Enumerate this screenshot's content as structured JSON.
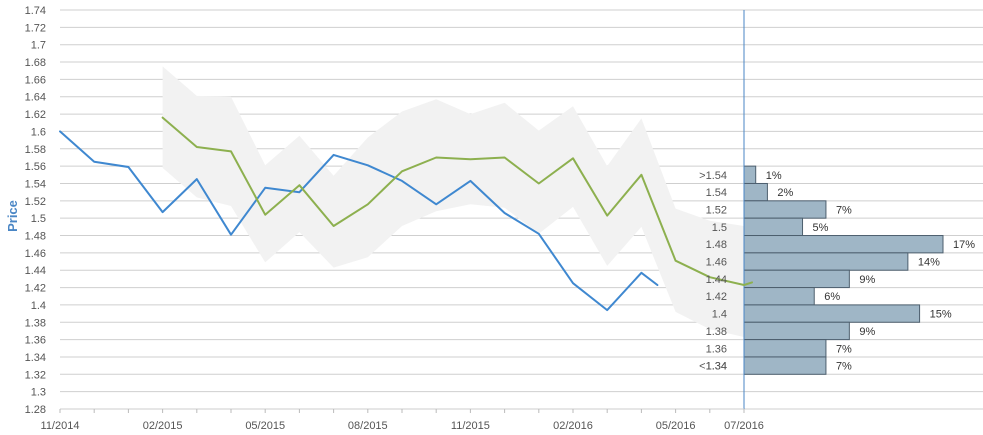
{
  "chart_data": {
    "type": "line",
    "ylabel": "Price",
    "ylim": [
      1.28,
      1.74
    ],
    "y_ticks": [
      "1.74",
      "1.72",
      "1.7",
      "1.68",
      "1.66",
      "1.64",
      "1.62",
      "1.6",
      "1.58",
      "1.56",
      "1.54",
      "1.52",
      "1.5",
      "1.48",
      "1.46",
      "1.44",
      "1.42",
      "1.4",
      "1.38",
      "1.36",
      "1.34",
      "1.32",
      "1.3",
      "1.28"
    ],
    "x_ticks": [
      "11/2014",
      "02/2015",
      "05/2015",
      "08/2015",
      "11/2015",
      "02/2016",
      "05/2016",
      "07/2016"
    ],
    "x_range": [
      "2014-11",
      "2016-07"
    ],
    "grid": true,
    "colors": {
      "actual": "#3f88d0",
      "forecast": "#8db04f",
      "band": "#f2f2f2",
      "histogram_bar": "#9fb6c6",
      "histogram_border": "#4d5f6e",
      "axis": "#4a86c5"
    },
    "series": [
      {
        "color_key": "actual",
        "points": [
          [
            "2014-11",
            1.6
          ],
          [
            "2014-12",
            1.565
          ],
          [
            "2015-01",
            1.559
          ],
          [
            "2015-02",
            1.507
          ],
          [
            "2015-03",
            1.545
          ],
          [
            "2015-04",
            1.481
          ],
          [
            "2015-05",
            1.535
          ],
          [
            "2015-06",
            1.53
          ],
          [
            "2015-07",
            1.573
          ],
          [
            "2015-08",
            1.561
          ],
          [
            "2015-09",
            1.543
          ],
          [
            "2015-10",
            1.516
          ],
          [
            "2015-11",
            1.543
          ],
          [
            "2015-12",
            1.506
          ],
          [
            "2016-01",
            1.482
          ],
          [
            "2016-02",
            1.425
          ],
          [
            "2016-03",
            1.394
          ],
          [
            "2016-04",
            1.437
          ],
          [
            "2016-04-15",
            1.423
          ]
        ]
      },
      {
        "color_key": "forecast",
        "points": [
          [
            "2015-02",
            1.616
          ],
          [
            "2015-03",
            1.582
          ],
          [
            "2015-04",
            1.577
          ],
          [
            "2015-05",
            1.504
          ],
          [
            "2015-06",
            1.538
          ],
          [
            "2015-07",
            1.491
          ],
          [
            "2015-08",
            1.516
          ],
          [
            "2015-09",
            1.554
          ],
          [
            "2015-10",
            1.57
          ],
          [
            "2015-11",
            1.568
          ],
          [
            "2015-12",
            1.57
          ],
          [
            "2016-01",
            1.54
          ],
          [
            "2016-02",
            1.569
          ],
          [
            "2016-03",
            1.503
          ],
          [
            "2016-04",
            1.55
          ],
          [
            "2016-05",
            1.451
          ],
          [
            "2016-06",
            1.432
          ],
          [
            "2016-07",
            1.423
          ],
          [
            "2016-07-08",
            1.426
          ]
        ]
      }
    ],
    "band": {
      "upper": [
        [
          "2015-02",
          1.675
        ],
        [
          "2015-03",
          1.641
        ],
        [
          "2015-04",
          1.64
        ],
        [
          "2015-05",
          1.561
        ],
        [
          "2015-06",
          1.595
        ],
        [
          "2015-07",
          1.549
        ],
        [
          "2015-08",
          1.593
        ],
        [
          "2015-09",
          1.623
        ],
        [
          "2015-10",
          1.637
        ],
        [
          "2015-11",
          1.62
        ],
        [
          "2015-12",
          1.633
        ],
        [
          "2016-01",
          1.601
        ],
        [
          "2016-02",
          1.629
        ],
        [
          "2016-03",
          1.56
        ],
        [
          "2016-04",
          1.615
        ],
        [
          "2016-05",
          1.511
        ],
        [
          "2016-06",
          1.497
        ],
        [
          "2016-07",
          1.491
        ]
      ],
      "lower": [
        [
          "2015-02",
          1.558
        ],
        [
          "2015-03",
          1.524
        ],
        [
          "2015-04",
          1.514
        ],
        [
          "2015-05",
          1.449
        ],
        [
          "2015-06",
          1.484
        ],
        [
          "2015-07",
          1.443
        ],
        [
          "2015-08",
          1.455
        ],
        [
          "2015-09",
          1.491
        ],
        [
          "2015-10",
          1.508
        ],
        [
          "2015-11",
          1.516
        ],
        [
          "2015-12",
          1.512
        ],
        [
          "2016-01",
          1.482
        ],
        [
          "2016-02",
          1.513
        ],
        [
          "2016-03",
          1.445
        ],
        [
          "2016-04",
          1.49
        ],
        [
          "2016-05",
          1.392
        ],
        [
          "2016-06",
          1.372
        ],
        [
          "2016-07",
          1.363
        ]
      ]
    },
    "histogram": [
      {
        "label": ">1.54",
        "low": 1.54,
        "high": 1.56,
        "percent": 1,
        "percent_label": "1%"
      },
      {
        "label": "1.54",
        "low": 1.52,
        "high": 1.54,
        "percent": 2,
        "percent_label": "2%"
      },
      {
        "label": "1.52",
        "low": 1.5,
        "high": 1.52,
        "percent": 7,
        "percent_label": "7%"
      },
      {
        "label": "1.5",
        "low": 1.48,
        "high": 1.5,
        "percent": 5,
        "percent_label": "5%"
      },
      {
        "label": "1.48",
        "low": 1.46,
        "high": 1.48,
        "percent": 17,
        "percent_label": "17%"
      },
      {
        "label": "1.46",
        "low": 1.44,
        "high": 1.46,
        "percent": 14,
        "percent_label": "14%"
      },
      {
        "label": "1.44",
        "low": 1.42,
        "high": 1.44,
        "percent": 9,
        "percent_label": "9%"
      },
      {
        "label": "1.42",
        "low": 1.4,
        "high": 1.42,
        "percent": 6,
        "percent_label": "6%"
      },
      {
        "label": "1.4",
        "low": 1.38,
        "high": 1.4,
        "percent": 15,
        "percent_label": "15%"
      },
      {
        "label": "1.38",
        "low": 1.36,
        "high": 1.38,
        "percent": 9,
        "percent_label": "9%"
      },
      {
        "label": "1.36",
        "low": 1.34,
        "high": 1.36,
        "percent": 7,
        "percent_label": "7%"
      },
      {
        "label": "1.34",
        "low": 1.32,
        "high": 1.34,
        "percent": 7,
        "percent_label": "7%"
      },
      {
        "label": "<1.34",
        "label_at": 1.33,
        "percent_label": ""
      }
    ]
  }
}
